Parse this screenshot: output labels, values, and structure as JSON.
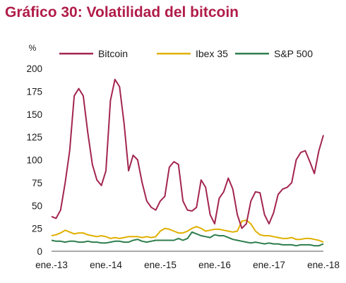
{
  "chart_data": {
    "type": "line",
    "title": "Gráfico 30: Volatilidad del bitcoin",
    "ylabel": "%",
    "xlabel": "",
    "ylim": [
      0,
      200
    ],
    "yticks": [
      0,
      25,
      50,
      75,
      100,
      125,
      150,
      175,
      200
    ],
    "x_tick_labels": [
      "ene.-13",
      "ene.-14",
      "ene.-15",
      "ene.-16",
      "ene.-17",
      "ene.-18"
    ],
    "x_unit": "months since ene.-13",
    "xlim": [
      0,
      60
    ],
    "grid": false,
    "legend_position": "top",
    "title_color": "#b01c48",
    "series": [
      {
        "name": "Bitcoin",
        "color": "#a3254f",
        "points": [
          [
            0,
            38
          ],
          [
            1,
            36
          ],
          [
            2,
            45
          ],
          [
            3,
            75
          ],
          [
            4,
            110
          ],
          [
            5,
            170
          ],
          [
            6,
            178
          ],
          [
            7,
            170
          ],
          [
            8,
            130
          ],
          [
            9,
            95
          ],
          [
            10,
            78
          ],
          [
            11,
            72
          ],
          [
            12,
            88
          ],
          [
            13,
            165
          ],
          [
            14,
            188
          ],
          [
            15,
            180
          ],
          [
            16,
            140
          ],
          [
            17,
            88
          ],
          [
            18,
            105
          ],
          [
            19,
            100
          ],
          [
            20,
            75
          ],
          [
            21,
            55
          ],
          [
            22,
            48
          ],
          [
            23,
            45
          ],
          [
            24,
            55
          ],
          [
            25,
            60
          ],
          [
            26,
            92
          ],
          [
            27,
            98
          ],
          [
            28,
            95
          ],
          [
            29,
            55
          ],
          [
            30,
            45
          ],
          [
            31,
            44
          ],
          [
            32,
            48
          ],
          [
            33,
            78
          ],
          [
            34,
            70
          ],
          [
            35,
            40
          ],
          [
            36,
            30
          ],
          [
            37,
            58
          ],
          [
            38,
            65
          ],
          [
            39,
            80
          ],
          [
            40,
            68
          ],
          [
            41,
            40
          ],
          [
            42,
            25
          ],
          [
            43,
            30
          ],
          [
            44,
            55
          ],
          [
            45,
            65
          ],
          [
            46,
            64
          ],
          [
            47,
            40
          ],
          [
            48,
            30
          ],
          [
            49,
            42
          ],
          [
            50,
            62
          ],
          [
            51,
            68
          ],
          [
            52,
            70
          ],
          [
            53,
            75
          ],
          [
            54,
            100
          ],
          [
            55,
            108
          ],
          [
            56,
            110
          ],
          [
            57,
            98
          ],
          [
            58,
            85
          ],
          [
            59,
            110
          ],
          [
            60,
            127
          ]
        ]
      },
      {
        "name": "Ibex 35",
        "color": "#e0b000",
        "points": [
          [
            0,
            17
          ],
          [
            1,
            18
          ],
          [
            2,
            20
          ],
          [
            3,
            23
          ],
          [
            4,
            21
          ],
          [
            5,
            19
          ],
          [
            6,
            20
          ],
          [
            7,
            20
          ],
          [
            8,
            18
          ],
          [
            9,
            17
          ],
          [
            10,
            16
          ],
          [
            11,
            17
          ],
          [
            12,
            16
          ],
          [
            13,
            14
          ],
          [
            14,
            15
          ],
          [
            15,
            14
          ],
          [
            16,
            15
          ],
          [
            17,
            16
          ],
          [
            18,
            16
          ],
          [
            19,
            16
          ],
          [
            20,
            15
          ],
          [
            21,
            16
          ],
          [
            22,
            15
          ],
          [
            23,
            16
          ],
          [
            24,
            22
          ],
          [
            25,
            25
          ],
          [
            26,
            24
          ],
          [
            27,
            22
          ],
          [
            28,
            20
          ],
          [
            29,
            20
          ],
          [
            30,
            22
          ],
          [
            31,
            25
          ],
          [
            32,
            27
          ],
          [
            33,
            25
          ],
          [
            34,
            22
          ],
          [
            35,
            23
          ],
          [
            36,
            24
          ],
          [
            37,
            24
          ],
          [
            38,
            23
          ],
          [
            39,
            22
          ],
          [
            40,
            21
          ],
          [
            41,
            22
          ],
          [
            42,
            33
          ],
          [
            43,
            34
          ],
          [
            44,
            30
          ],
          [
            45,
            22
          ],
          [
            46,
            18
          ],
          [
            47,
            17
          ],
          [
            48,
            17
          ],
          [
            49,
            16
          ],
          [
            50,
            15
          ],
          [
            51,
            14
          ],
          [
            52,
            14
          ],
          [
            53,
            15
          ],
          [
            54,
            13
          ],
          [
            55,
            13
          ],
          [
            56,
            14
          ],
          [
            57,
            14
          ],
          [
            58,
            13
          ],
          [
            59,
            12
          ],
          [
            60,
            10
          ]
        ]
      },
      {
        "name": "S&P 500",
        "color": "#2d7d4c",
        "points": [
          [
            0,
            12
          ],
          [
            1,
            11
          ],
          [
            2,
            11
          ],
          [
            3,
            10
          ],
          [
            4,
            11
          ],
          [
            5,
            11
          ],
          [
            6,
            10
          ],
          [
            7,
            10
          ],
          [
            8,
            11
          ],
          [
            9,
            10
          ],
          [
            10,
            10
          ],
          [
            11,
            9
          ],
          [
            12,
            9
          ],
          [
            13,
            10
          ],
          [
            14,
            11
          ],
          [
            15,
            11
          ],
          [
            16,
            10
          ],
          [
            17,
            10
          ],
          [
            18,
            12
          ],
          [
            19,
            13
          ],
          [
            20,
            11
          ],
          [
            21,
            10
          ],
          [
            22,
            11
          ],
          [
            23,
            12
          ],
          [
            24,
            12
          ],
          [
            25,
            12
          ],
          [
            26,
            12
          ],
          [
            27,
            12
          ],
          [
            28,
            14
          ],
          [
            29,
            12
          ],
          [
            30,
            14
          ],
          [
            31,
            21
          ],
          [
            32,
            19
          ],
          [
            33,
            17
          ],
          [
            34,
            16
          ],
          [
            35,
            15
          ],
          [
            36,
            18
          ],
          [
            37,
            17
          ],
          [
            38,
            17
          ],
          [
            39,
            15
          ],
          [
            40,
            13
          ],
          [
            41,
            12
          ],
          [
            42,
            11
          ],
          [
            43,
            10
          ],
          [
            44,
            9
          ],
          [
            45,
            10
          ],
          [
            46,
            9
          ],
          [
            47,
            8
          ],
          [
            48,
            9
          ],
          [
            49,
            8
          ],
          [
            50,
            8
          ],
          [
            51,
            7
          ],
          [
            52,
            7
          ],
          [
            53,
            7
          ],
          [
            54,
            6
          ],
          [
            55,
            7
          ],
          [
            56,
            7
          ],
          [
            57,
            7
          ],
          [
            58,
            6
          ],
          [
            59,
            6
          ],
          [
            60,
            8
          ]
        ]
      }
    ]
  }
}
